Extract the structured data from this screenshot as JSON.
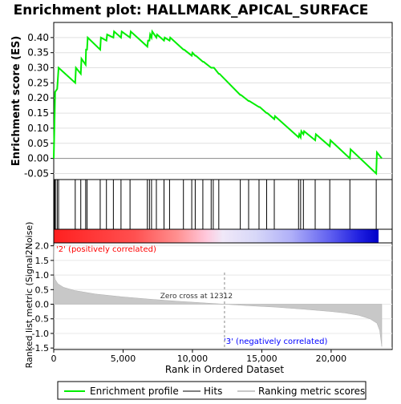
{
  "chart_data": {
    "type": "line",
    "title": "Enrichment plot: HALLMARK_APICAL_SURFACE",
    "top_panel": {
      "ylabel": "Enrichment score (ES)",
      "ylim": [
        -0.07,
        0.45
      ],
      "yticks": [
        "-0.05",
        "0.00",
        "0.05",
        "0.10",
        "0.15",
        "0.20",
        "0.25",
        "0.30",
        "0.35",
        "0.40"
      ],
      "ytick_values": [
        -0.05,
        0,
        0.05,
        0.1,
        0.15,
        0.2,
        0.25,
        0.3,
        0.35,
        0.4
      ],
      "grid": "horizontal",
      "series": [
        {
          "name": "Enrichment profile",
          "color": "#00ee00",
          "x": [
            0,
            60,
            100,
            250,
            350,
            1550,
            1600,
            1950,
            2000,
            2300,
            2330,
            2400,
            2450,
            3350,
            3400,
            3800,
            3850,
            4300,
            4350,
            4850,
            4900,
            5500,
            5550,
            6750,
            6800,
            6900,
            6950,
            7050,
            7100,
            7400,
            7450,
            7950,
            8000,
            8350,
            8400,
            9350,
            9400,
            9950,
            10000,
            10200,
            10250,
            10750,
            10800,
            11350,
            11400,
            11500,
            11550,
            11900,
            11950,
            13450,
            13500,
            14050,
            14100,
            14800,
            14850,
            15350,
            15400,
            15900,
            15950,
            17650,
            17700,
            17800,
            17850,
            18000,
            18050,
            18850,
            18900,
            19900,
            19950,
            21350,
            21400,
            23250,
            23300,
            23650
          ],
          "y": [
            0.0,
            0.13,
            0.22,
            0.23,
            0.3,
            0.25,
            0.3,
            0.28,
            0.33,
            0.31,
            0.36,
            0.36,
            0.4,
            0.36,
            0.4,
            0.39,
            0.41,
            0.4,
            0.42,
            0.4,
            0.42,
            0.4,
            0.42,
            0.37,
            0.39,
            0.39,
            0.41,
            0.4,
            0.42,
            0.4,
            0.41,
            0.39,
            0.4,
            0.39,
            0.4,
            0.36,
            0.36,
            0.34,
            0.35,
            0.34,
            0.34,
            0.32,
            0.32,
            0.3,
            0.3,
            0.3,
            0.3,
            0.28,
            0.28,
            0.21,
            0.21,
            0.19,
            0.19,
            0.17,
            0.17,
            0.15,
            0.15,
            0.13,
            0.14,
            0.07,
            0.08,
            0.07,
            0.09,
            0.08,
            0.09,
            0.06,
            0.08,
            0.04,
            0.06,
            0.0,
            0.03,
            -0.05,
            0.02,
            0.0
          ]
        }
      ]
    },
    "hits": {
      "name": "Hits",
      "positions": [
        60,
        120,
        250,
        350,
        1550,
        1950,
        2300,
        2400,
        3350,
        3800,
        4300,
        4850,
        5500,
        6750,
        6900,
        7050,
        7400,
        7950,
        8350,
        9350,
        9950,
        10200,
        10750,
        11350,
        11500,
        11900,
        13450,
        14050,
        14800,
        15350,
        15900,
        17650,
        17800,
        18000,
        18850,
        19900,
        21350,
        23250
      ]
    },
    "bottom_panel": {
      "xlabel": "Rank in Ordered Dataset",
      "ylabel": "Ranked list metric (Signal2Noise)",
      "ylim": [
        -1.55,
        2.1
      ],
      "yticks": [
        "-1.5",
        "-1.0",
        "-0.5",
        "0.0",
        "0.5",
        "1.0",
        "1.5",
        "2.0"
      ],
      "ytick_values": [
        -1.5,
        -1.0,
        -0.5,
        0.0,
        0.5,
        1.0,
        1.5,
        2.0
      ],
      "xlim": [
        0,
        24400
      ],
      "xticks": [
        "0",
        "5,000",
        "10,000",
        "15,000",
        "20,000"
      ],
      "xtick_values": [
        0,
        5000,
        10000,
        15000,
        20000
      ],
      "series": [
        {
          "name": "Ranking metric scores",
          "color": "#c8c8c8",
          "x": [
            0,
            30,
            100,
            300,
            700,
            1500,
            3000,
            5000,
            7000,
            9000,
            11000,
            12312,
            14000,
            16000,
            18000,
            20000,
            21000,
            22000,
            22800,
            23300,
            23500,
            23650
          ],
          "y": [
            2.0,
            1.05,
            0.85,
            0.7,
            0.58,
            0.47,
            0.35,
            0.25,
            0.17,
            0.1,
            0.04,
            0.0,
            -0.05,
            -0.1,
            -0.17,
            -0.25,
            -0.3,
            -0.38,
            -0.5,
            -0.65,
            -0.9,
            -1.45
          ]
        }
      ],
      "zero_cross_text": "Zero cross at 12312",
      "zero_cross_rank": 12312,
      "positive_label": "'2' (positively correlated)",
      "negative_label": "'3' (negatively correlated)",
      "positive_color": "#ff0000",
      "negative_color": "#0000ff"
    },
    "legend": {
      "placement": "bottom",
      "entries": [
        {
          "label": "Enrichment profile",
          "color": "#00ee00"
        },
        {
          "label": "Hits",
          "color": "#000000"
        },
        {
          "label": "Ranking metric scores",
          "color": "#c8c8c8"
        }
      ]
    },
    "n_genes": 23650
  }
}
